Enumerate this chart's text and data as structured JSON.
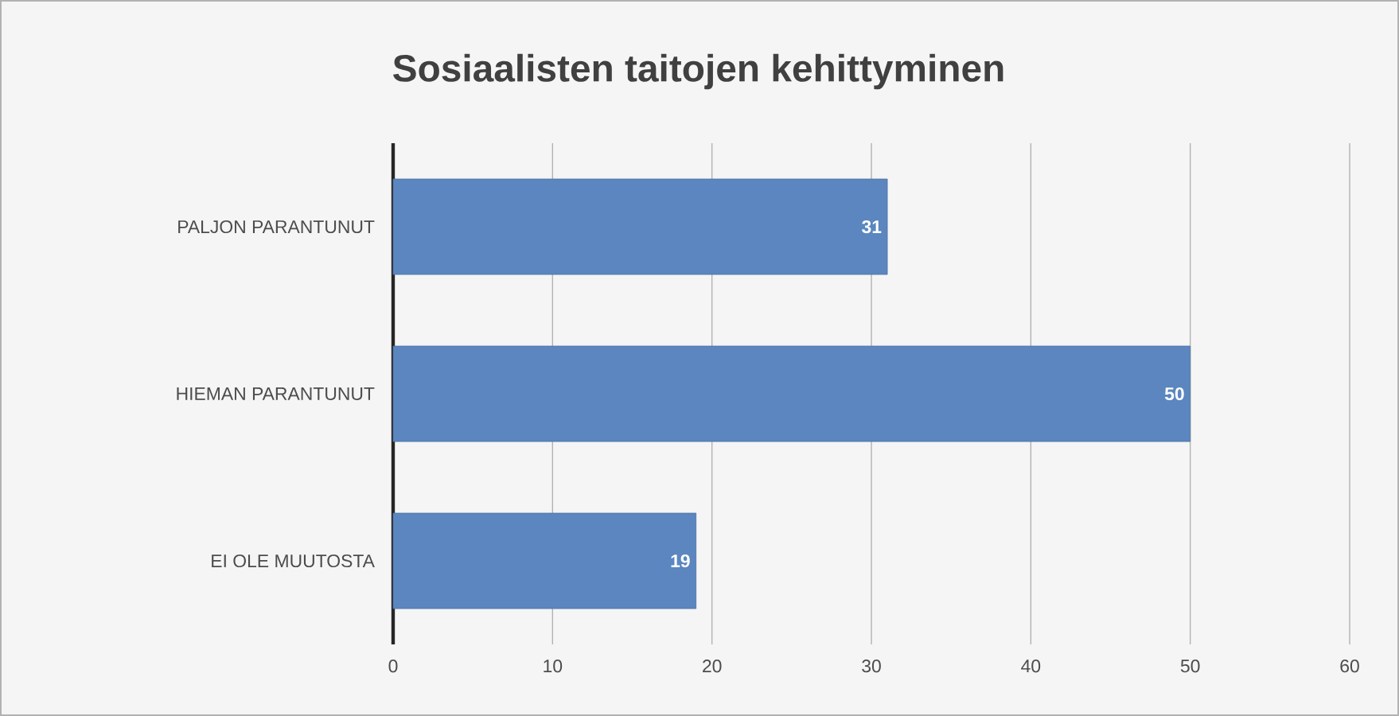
{
  "chart_data": {
    "type": "bar",
    "orientation": "horizontal",
    "title": "Sosiaalisten taitojen kehittyminen",
    "categories": [
      "PALJON PARANTUNUT",
      "HIEMAN PARANTUNUT",
      "EI OLE MUUTOSTA"
    ],
    "values": [
      31,
      50,
      19
    ],
    "color": "#5b86bf",
    "xlim": [
      0,
      60
    ],
    "xticks": [
      0,
      10,
      20,
      30,
      40,
      50,
      60
    ],
    "grid": "x",
    "data_labels": true
  }
}
